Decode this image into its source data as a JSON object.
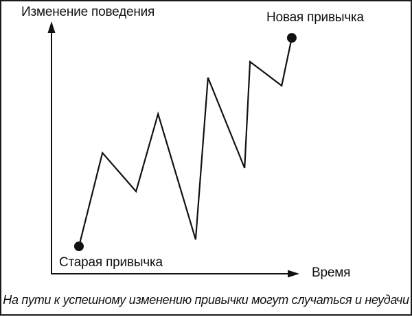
{
  "figure": {
    "y_axis_label": "Изменение поведения",
    "x_axis_label": "Время",
    "start_label": "Старая привычка",
    "end_label": "Новая привычка",
    "caption": "На пути к успешному изменению привычки могут случаться и неудачи"
  },
  "colors": {
    "ink": "#111111",
    "background": "#ffffff"
  },
  "chart_data": {
    "type": "line",
    "title": "",
    "xlabel": "Время",
    "ylabel": "Изменение поведения",
    "x_range": [
      0,
      100
    ],
    "y_range": [
      0,
      100
    ],
    "grid": false,
    "legend": false,
    "series": [
      {
        "name": "habit-change-path",
        "points": [
          {
            "x": 11.1,
            "y": 10.9
          },
          {
            "x": 20.6,
            "y": 48.0
          },
          {
            "x": 34.2,
            "y": 32.7
          },
          {
            "x": 43.1,
            "y": 63.5
          },
          {
            "x": 58.3,
            "y": 13.6
          },
          {
            "x": 63.3,
            "y": 77.9
          },
          {
            "x": 78.1,
            "y": 42.0
          },
          {
            "x": 80.3,
            "y": 84.2
          },
          {
            "x": 93.1,
            "y": 74.7
          },
          {
            "x": 97.2,
            "y": 93.7
          }
        ]
      }
    ],
    "annotations": [
      {
        "label": "Старая привычка",
        "point_index": 0,
        "marker": "filled-dot"
      },
      {
        "label": "Новая привычка",
        "point_index": 9,
        "marker": "filled-dot"
      }
    ]
  }
}
